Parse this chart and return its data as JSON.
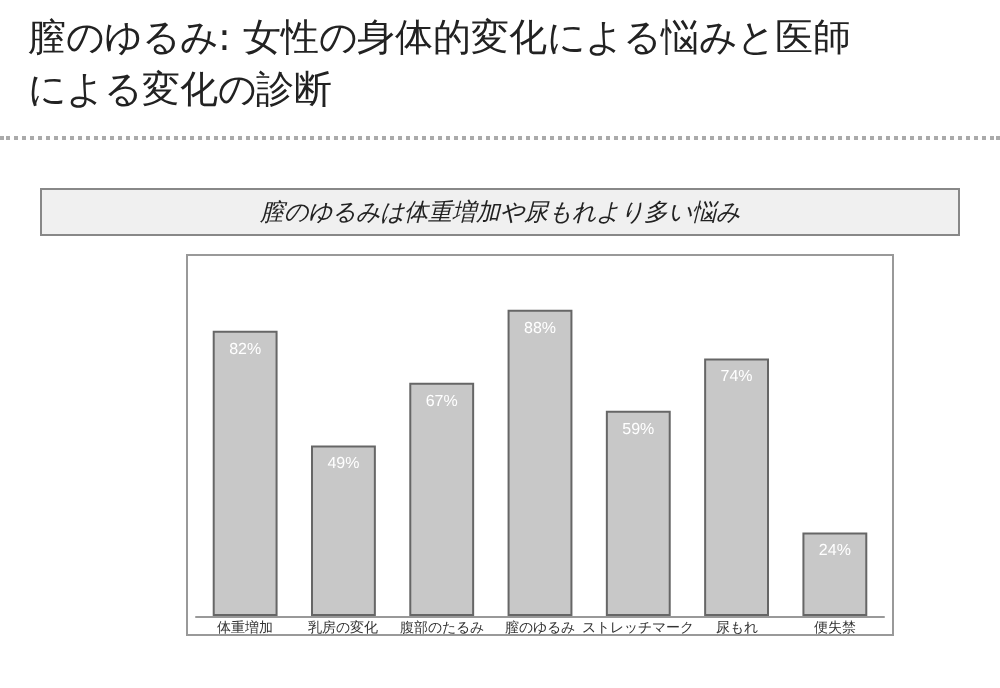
{
  "chart_data": {
    "type": "bar",
    "title": "膣のゆるみ: 女性の身体的変化による悩みと医師による変化の診断",
    "subtitle": "膣のゆるみは体重増加や尿もれより多い悩み",
    "categories": [
      "体重増加",
      "乳房の変化",
      "腹部のたるみ",
      "膣のゆるみ",
      "ストレッチマーク",
      "尿もれ",
      "便失禁"
    ],
    "values": [
      82,
      49,
      67,
      88,
      59,
      74,
      24
    ],
    "value_labels": [
      "82%",
      "49%",
      "67%",
      "88%",
      "59%",
      "74%",
      "24%"
    ],
    "color": "#c8c8c8"
  }
}
